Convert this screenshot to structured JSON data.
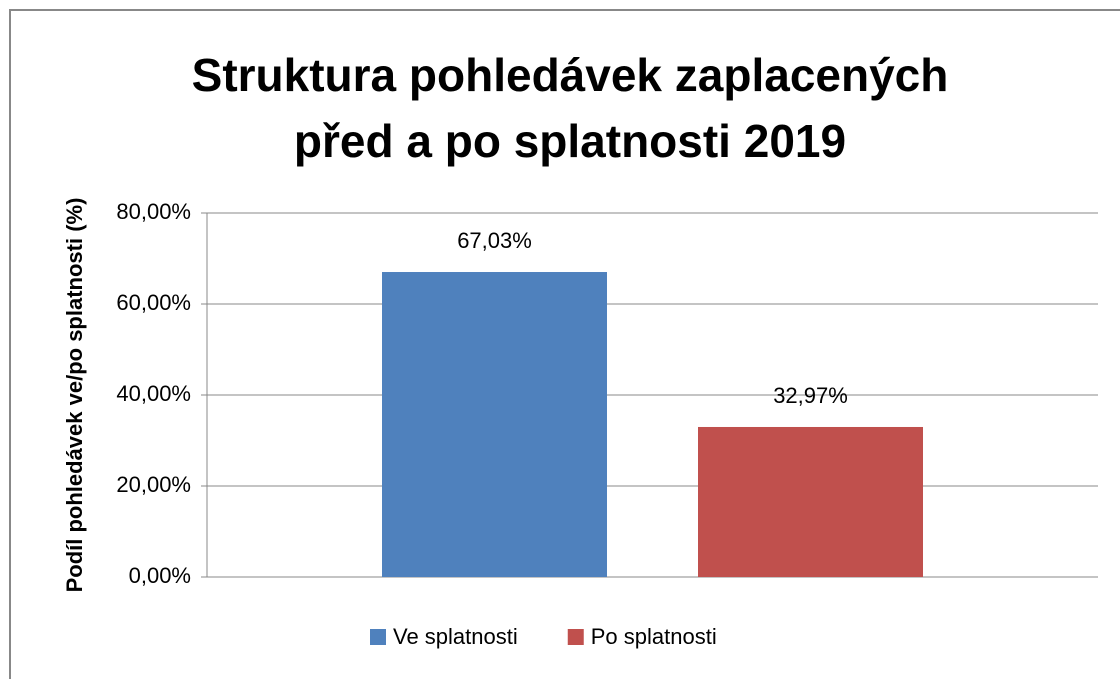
{
  "chart_data": {
    "type": "bar",
    "title": "Struktura pohledávek zaplacených před a po splatnosti 2019",
    "y_label": "Podíl pohledávek ve/po splatnosti (%)",
    "categories": [
      null
    ],
    "series": [
      {
        "name": "Ve splatnosti",
        "color": "#4f81bd",
        "values": [
          67.03
        ],
        "value_labels": [
          "67,03%"
        ]
      },
      {
        "name": "Po splatnosti",
        "color": "#c0504d",
        "values": [
          32.97
        ],
        "value_labels": [
          "32,97%"
        ]
      }
    ],
    "ylim": [
      0,
      80
    ],
    "yticks": [
      {
        "value": 0,
        "label": "0,00%"
      },
      {
        "value": 20,
        "label": "20,00%"
      },
      {
        "value": 40,
        "label": "40,00%"
      },
      {
        "value": 60,
        "label": "60,00%"
      },
      {
        "value": 80,
        "label": "80,00%"
      }
    ],
    "grid": true,
    "legend": "bottom"
  }
}
